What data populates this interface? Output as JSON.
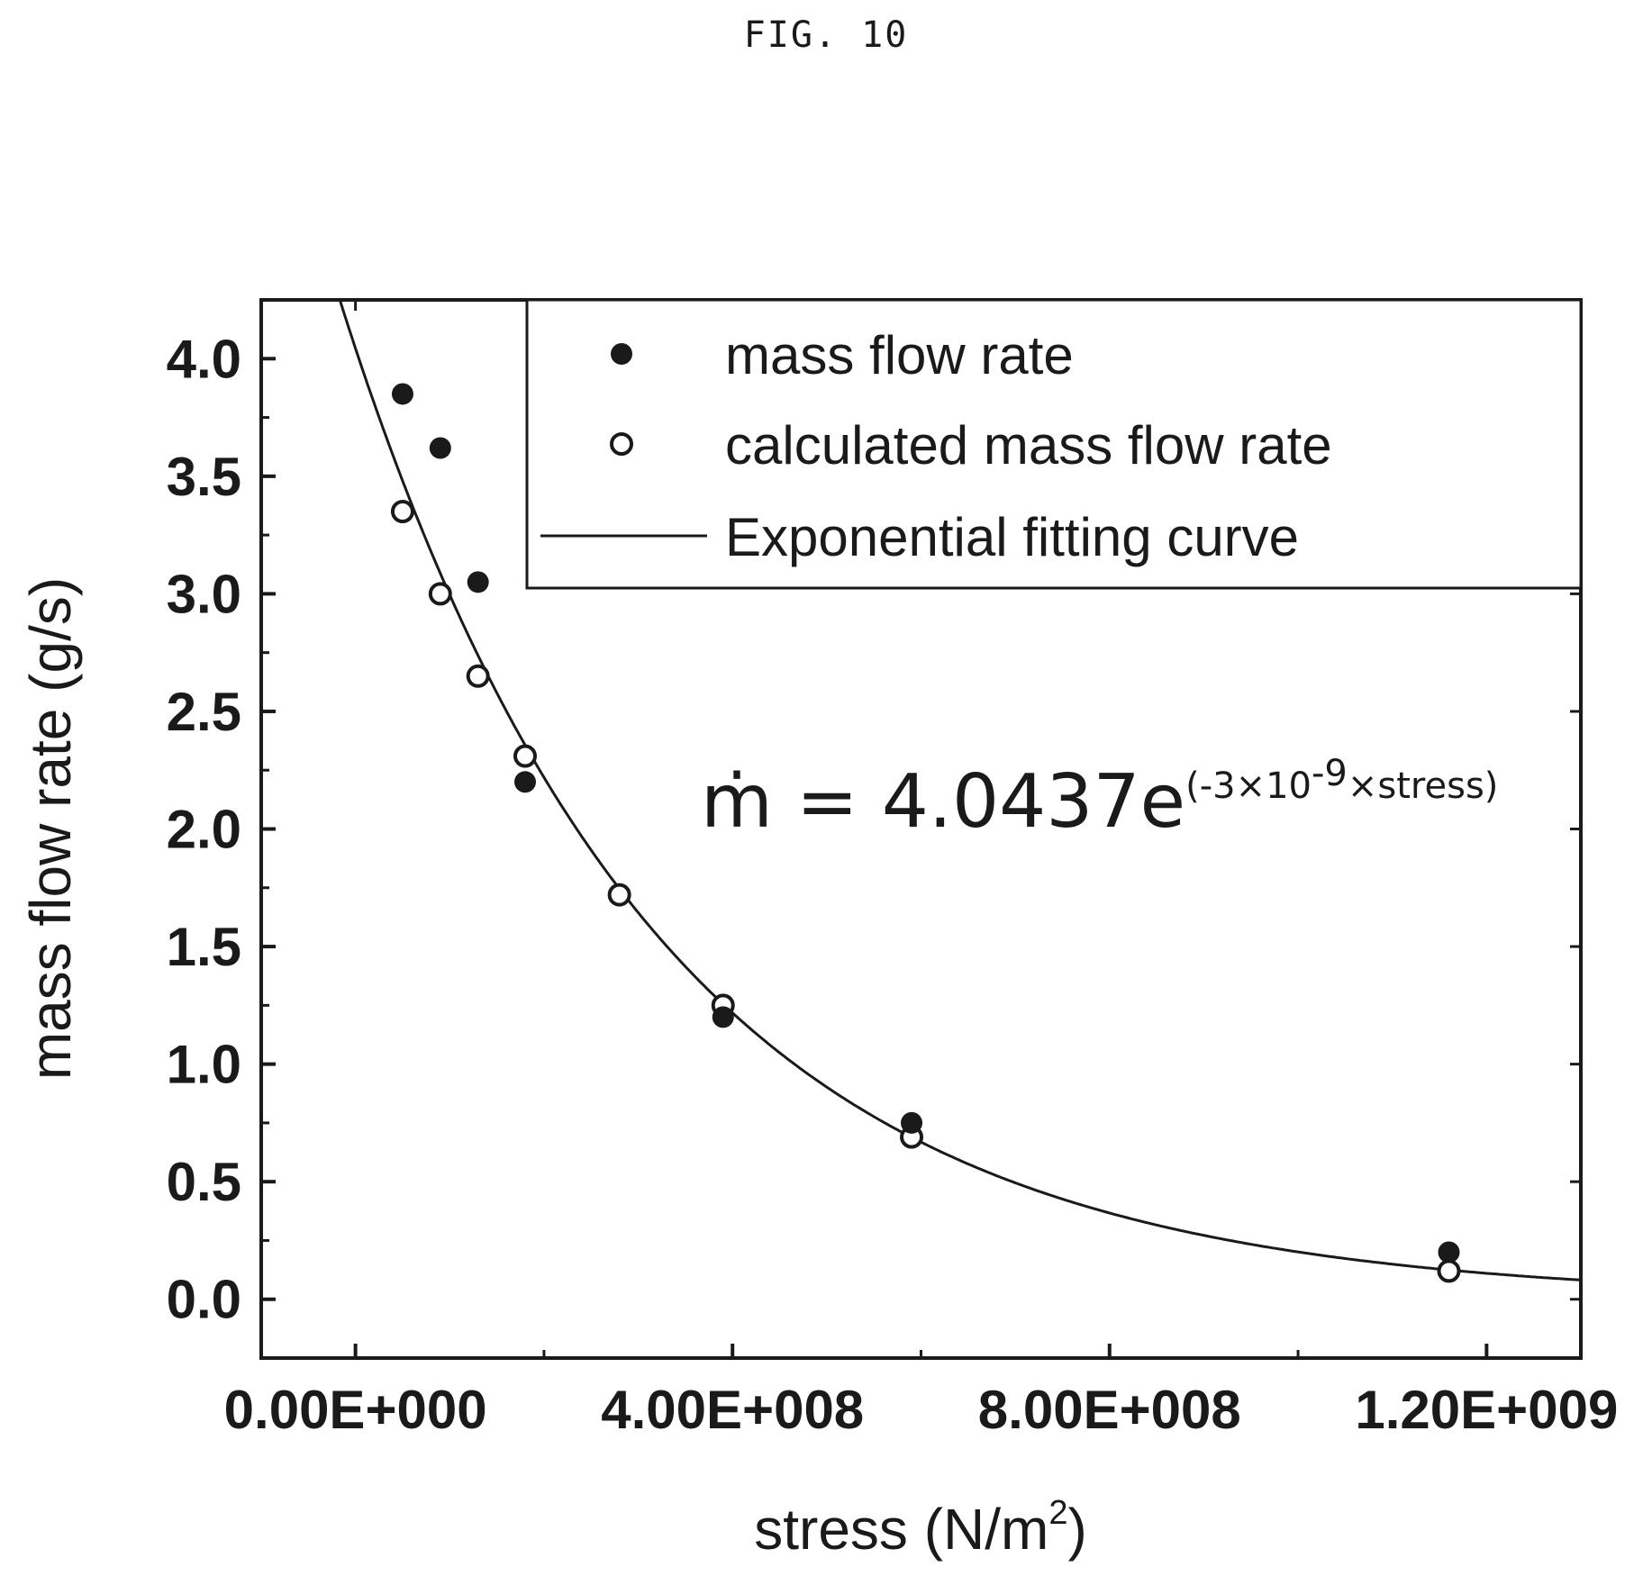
{
  "figure": {
    "label": "FIG. 10"
  },
  "chart_data": {
    "type": "scatter",
    "xlabel": "stress (N/m",
    "xlabel_sup": "2",
    "xlabel_close": ")",
    "ylabel": "mass flow rate (g/s)",
    "xlim": [
      -100000000.0,
      1300000000.0
    ],
    "ylim": [
      -0.25,
      4.25
    ],
    "x_ticks": [
      0,
      400000000,
      800000000,
      1200000000
    ],
    "x_tick_labels": [
      "0.00E+000",
      "4.00E+008",
      "8.00E+008",
      "1.20E+009"
    ],
    "y_ticks": [
      0.0,
      0.5,
      1.0,
      1.5,
      2.0,
      2.5,
      3.0,
      3.5,
      4.0
    ],
    "y_tick_labels": [
      "0.0",
      "0.5",
      "1.0",
      "1.5",
      "2.0",
      "2.5",
      "3.0",
      "3.5",
      "4.0"
    ],
    "grid": false,
    "legend_position": "top-right",
    "series": [
      {
        "name": "mass flow rate",
        "marker": "filled-circle",
        "points": [
          {
            "x": 50000000,
            "y": 3.85
          },
          {
            "x": 90000000,
            "y": 3.62
          },
          {
            "x": 130000000,
            "y": 3.05
          },
          {
            "x": 180000000,
            "y": 2.2
          },
          {
            "x": 390000000,
            "y": 1.2
          },
          {
            "x": 590000000,
            "y": 0.75
          },
          {
            "x": 1160000000,
            "y": 0.2
          }
        ]
      },
      {
        "name": "calculated mass flow rate",
        "marker": "open-circle",
        "points": [
          {
            "x": 50000000,
            "y": 3.35
          },
          {
            "x": 90000000,
            "y": 3.0
          },
          {
            "x": 130000000,
            "y": 2.65
          },
          {
            "x": 180000000,
            "y": 2.31
          },
          {
            "x": 280000000,
            "y": 1.72
          },
          {
            "x": 390000000,
            "y": 1.25
          },
          {
            "x": 590000000,
            "y": 0.69
          },
          {
            "x": 1160000000,
            "y": 0.12
          }
        ]
      },
      {
        "name": "Exponential fitting curve",
        "marker": "line",
        "equation": {
          "a": 4.0437,
          "b": -3e-09
        }
      }
    ],
    "annotation": {
      "main": "ṁ = 4.0437e",
      "exponent": "(-3×10",
      "exponent_power": "-9",
      "exponent_tail": "×stress)"
    }
  }
}
